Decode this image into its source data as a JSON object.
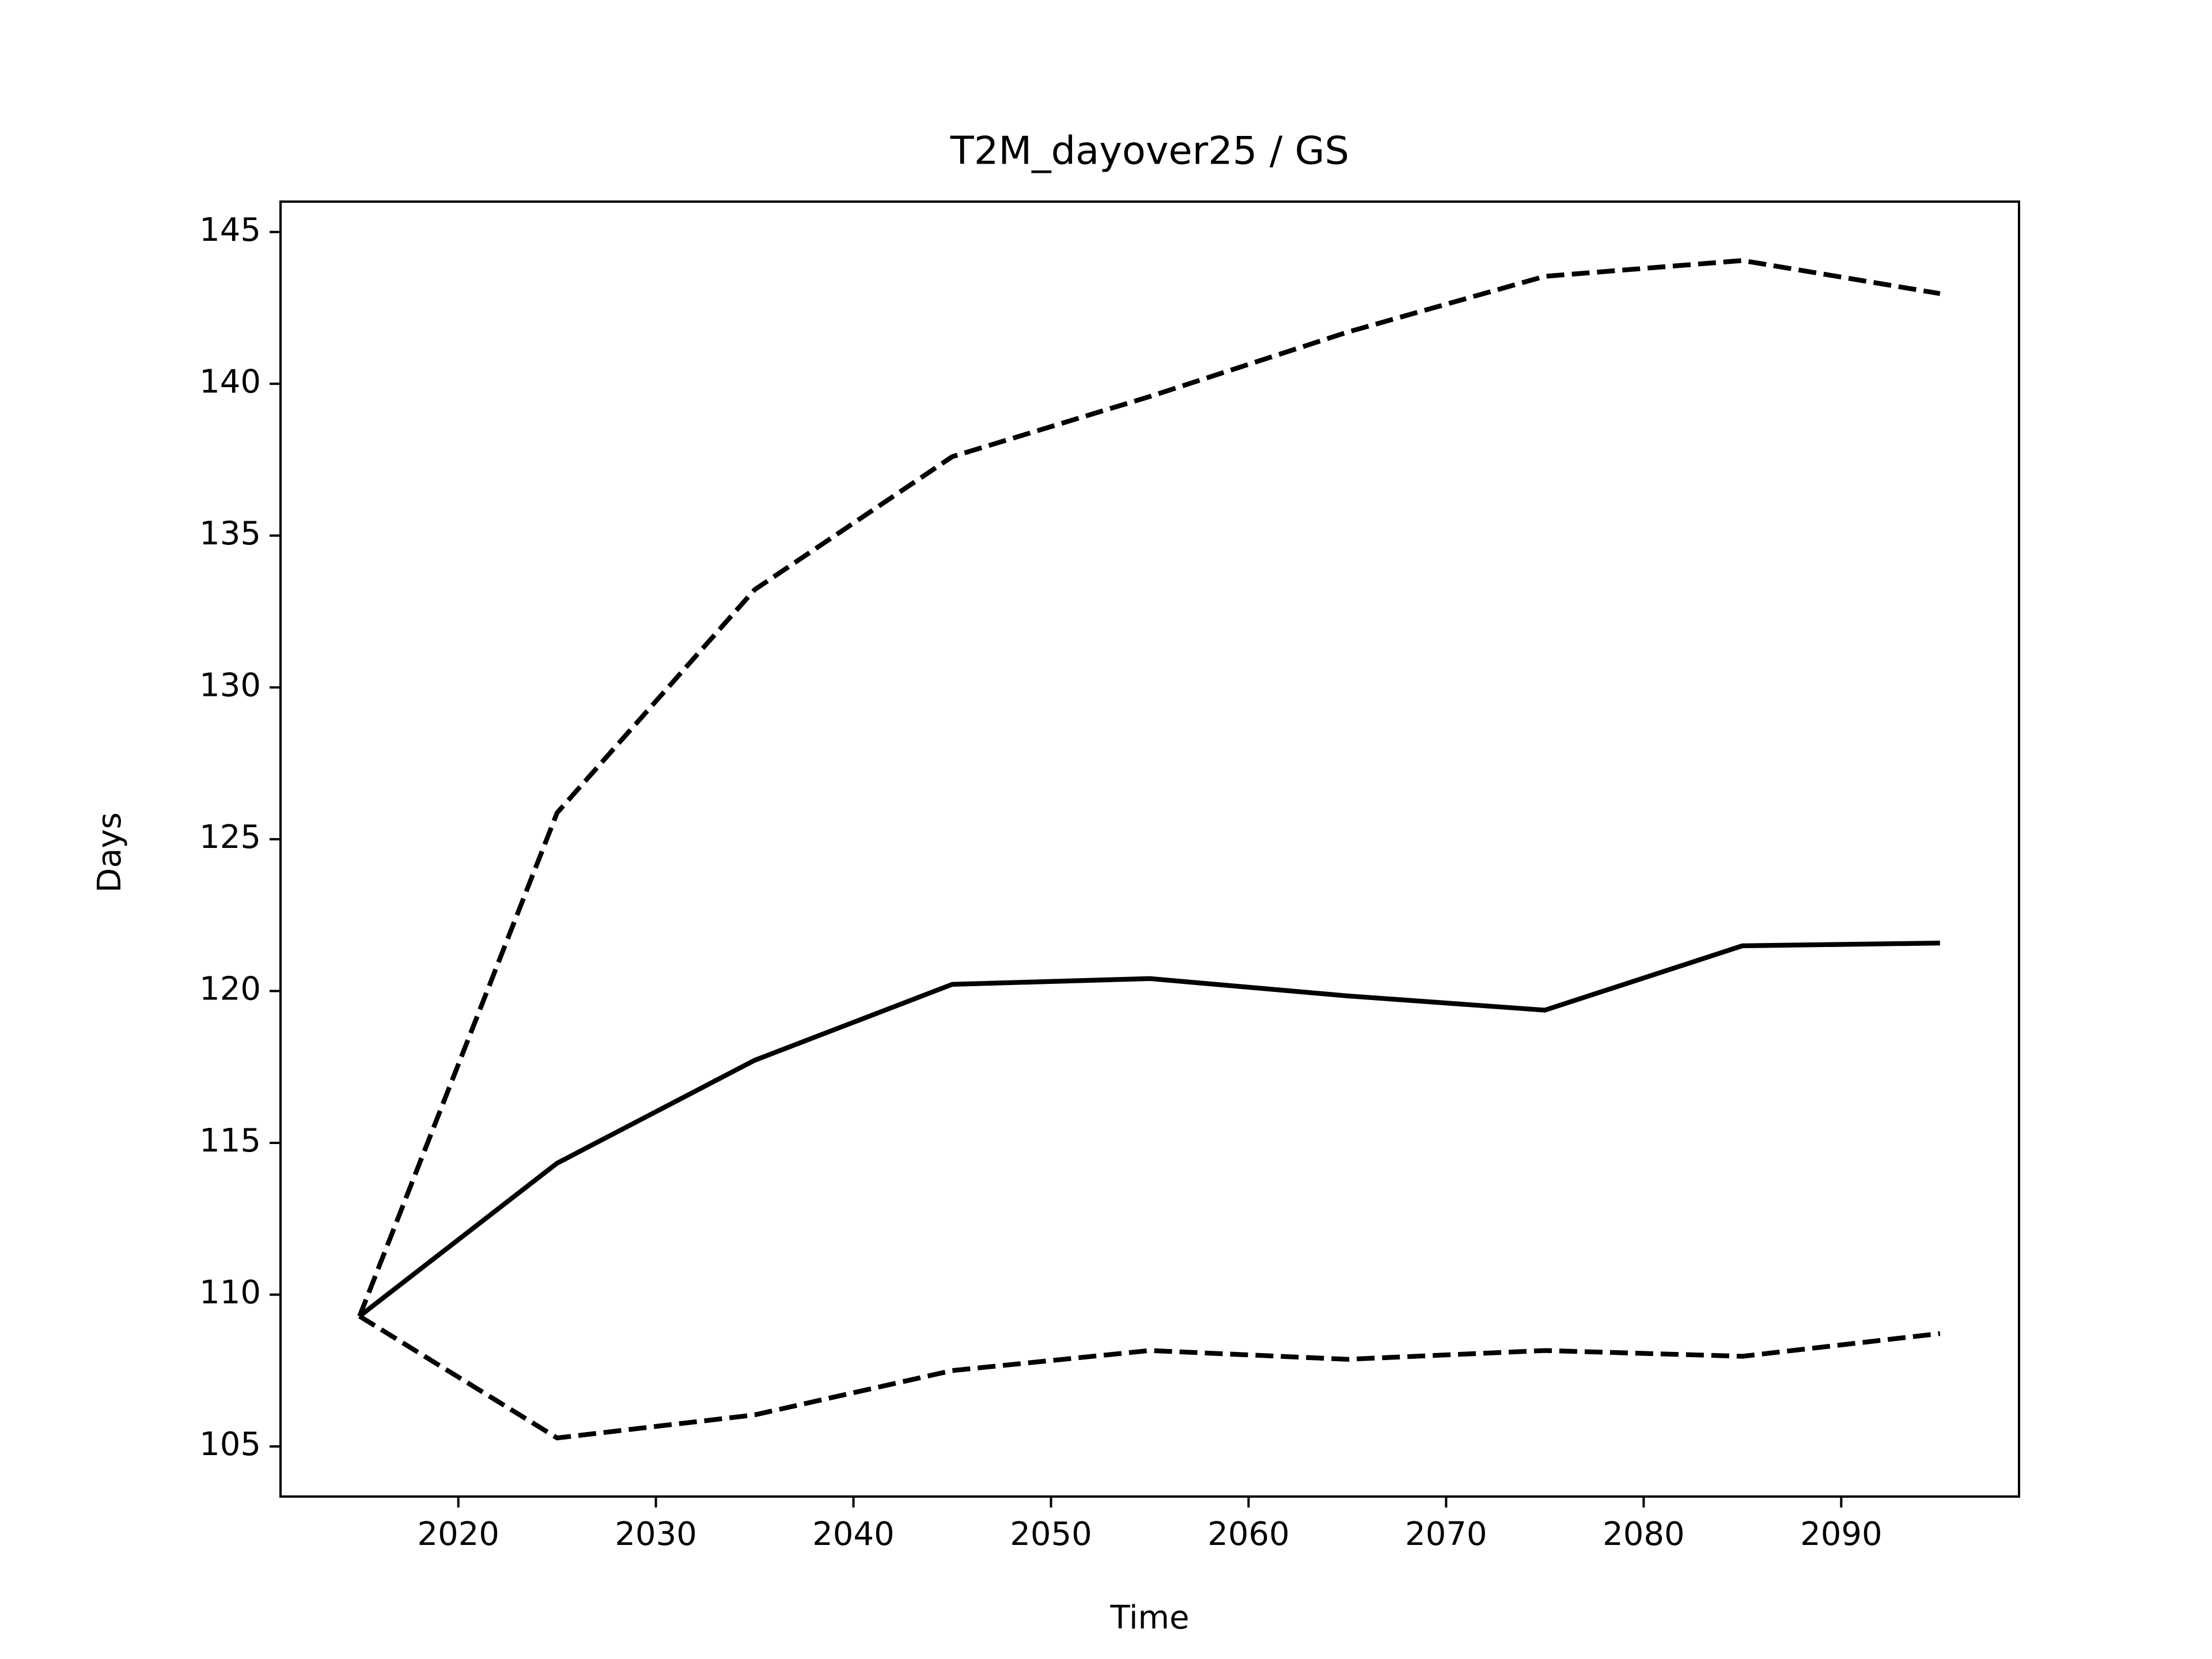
{
  "chart_data": {
    "type": "line",
    "title": "T2M_dayover25 / GS",
    "x_label": "Time",
    "y_label": "Days",
    "x": [
      2015,
      2025,
      2035,
      2045,
      2055,
      2065,
      2075,
      2085,
      2095
    ],
    "series": [
      {
        "color": "#000000",
        "linestyle": "solid",
        "values": [
          109.29,
          114.33,
          117.72,
          120.22,
          120.41,
          119.84,
          119.37,
          121.49,
          121.58
        ]
      },
      {
        "color": "#000000",
        "linestyle": "dashed",
        "values": [
          109.29,
          125.87,
          133.22,
          137.6,
          139.58,
          141.7,
          143.54,
          144.06,
          142.97
        ]
      },
      {
        "color": "#000000",
        "linestyle": "dashed",
        "values": [
          109.29,
          105.28,
          106.04,
          107.5,
          108.16,
          107.87,
          108.16,
          107.97,
          108.72
        ]
      }
    ],
    "xlim": [
      2011,
      2099
    ],
    "xticks": [
      2020,
      2030,
      2040,
      2050,
      2060,
      2070,
      2080,
      2090
    ],
    "ylim": [
      103.35,
      146
    ],
    "yticks": [
      105,
      110,
      115,
      120,
      125,
      130,
      135,
      140,
      145
    ],
    "grid": false
  }
}
